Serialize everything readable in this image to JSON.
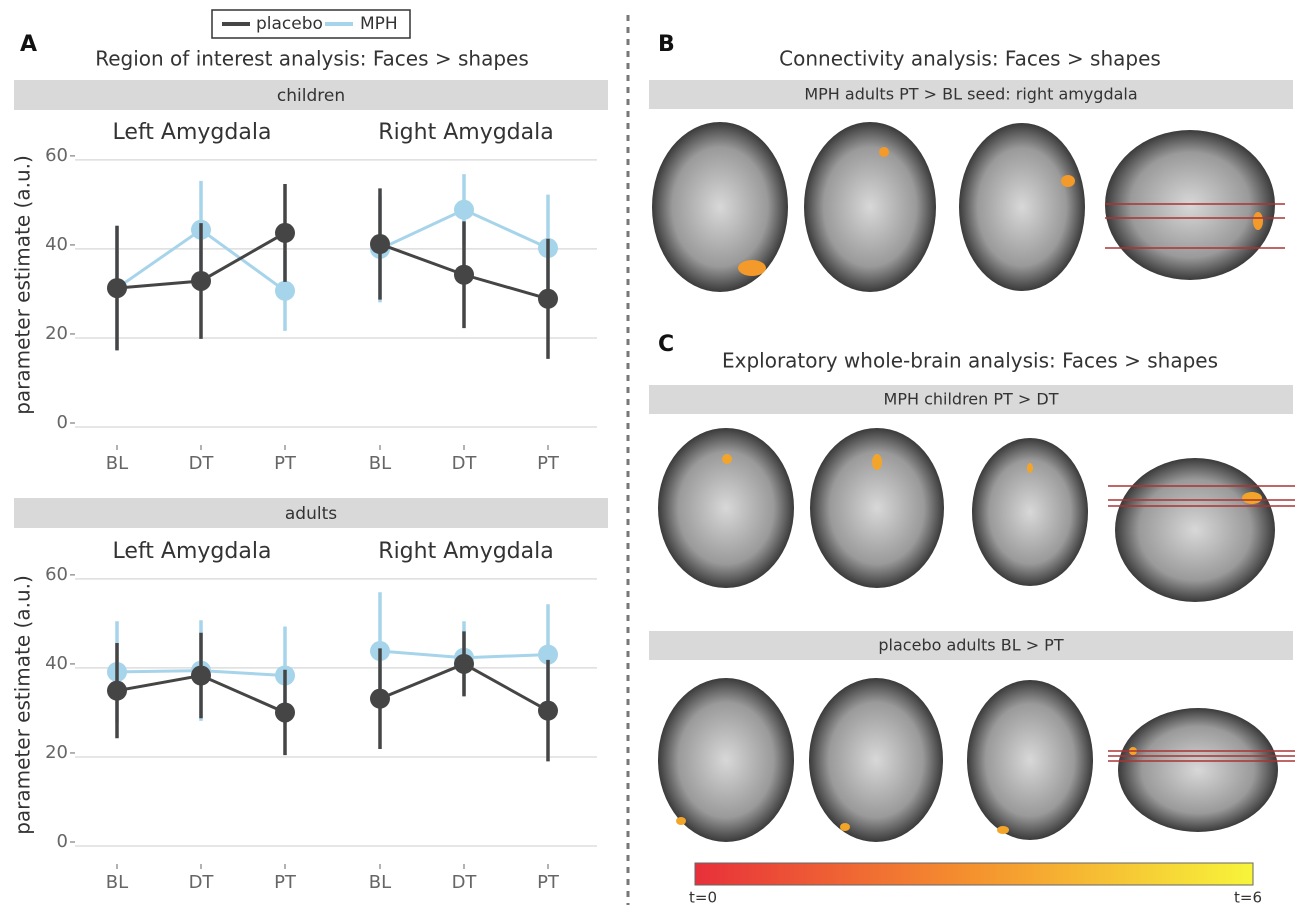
{
  "figure": {
    "panel_a": {
      "label": "A",
      "title": "Region of interest analysis: Faces > shapes",
      "groups": [
        "children",
        "adults"
      ],
      "ylabel": "parameter estimate (a.u.)"
    },
    "panel_b": {
      "label": "B",
      "title": "Connectivity analysis: Faces > shapes",
      "contrasts": [
        "MPH adults PT > BL  seed: right amygdala"
      ]
    },
    "panel_c": {
      "label": "C",
      "title": "Exploratory whole-brain analysis: Faces > shapes",
      "contrasts": [
        "MPH children PT > DT",
        "placebo adults BL > PT"
      ]
    },
    "colorbar": {
      "min_label": "t=0",
      "max_label": "t=6"
    }
  },
  "chart_data": [
    {
      "type": "line",
      "title": "Left Amygdala",
      "categories": [
        "BL",
        "DT",
        "PT"
      ],
      "ylim": [
        0,
        62
      ],
      "yticks": [
        0,
        20,
        40,
        60
      ],
      "grid": true,
      "series": [
        {
          "name": "placebo",
          "color": "#454545",
          "values": [
            31.2,
            32.8,
            43.6
          ],
          "errors": [
            14,
            13,
            11
          ]
        },
        {
          "name": "MPH",
          "color": "#a6d4ea",
          "values": [
            31.2,
            44.3,
            30.6
          ],
          "errors": [
            14,
            11,
            9
          ]
        }
      ]
    },
    {
      "type": "line",
      "title": "Right Amygdala",
      "categories": [
        "BL",
        "DT",
        "PT"
      ],
      "ylim": [
        0,
        62
      ],
      "yticks": [
        0,
        20,
        40,
        60
      ],
      "grid": true,
      "series": [
        {
          "name": "placebo",
          "color": "#454545",
          "values": [
            41.1,
            34.2,
            28.8
          ],
          "errors": [
            12.5,
            12,
            13.5
          ]
        },
        {
          "name": "MPH",
          "color": "#a6d4ea",
          "values": [
            40,
            48.8,
            40.2
          ],
          "errors": [
            12,
            8,
            12
          ]
        }
      ]
    },
    {
      "type": "line",
      "title": "Left Amygdala",
      "categories": [
        "BL",
        "DT",
        "PT"
      ],
      "ylim": [
        0,
        62
      ],
      "yticks": [
        0,
        20,
        40,
        60
      ],
      "grid": true,
      "series": [
        {
          "name": "placebo",
          "color": "#454545",
          "values": [
            34.9,
            38.3,
            30
          ],
          "errors": [
            10.7,
            9.6,
            9.6
          ]
        },
        {
          "name": "MPH",
          "color": "#a6d4ea",
          "values": [
            39.1,
            39.4,
            38.3
          ],
          "errors": [
            11.4,
            11.3,
            11
          ]
        }
      ]
    },
    {
      "type": "line",
      "title": "Right Amygdala",
      "categories": [
        "BL",
        "DT",
        "PT"
      ],
      "ylim": [
        0,
        62
      ],
      "yticks": [
        0,
        20,
        40,
        60
      ],
      "grid": true,
      "series": [
        {
          "name": "placebo",
          "color": "#454545",
          "values": [
            33.1,
            40.9,
            30.4
          ],
          "errors": [
            11.3,
            7.3,
            11.4
          ]
        },
        {
          "name": "MPH",
          "color": "#a6d4ea",
          "values": [
            43.8,
            42.3,
            43
          ],
          "errors": [
            13.2,
            8.2,
            11.3
          ]
        }
      ]
    }
  ]
}
